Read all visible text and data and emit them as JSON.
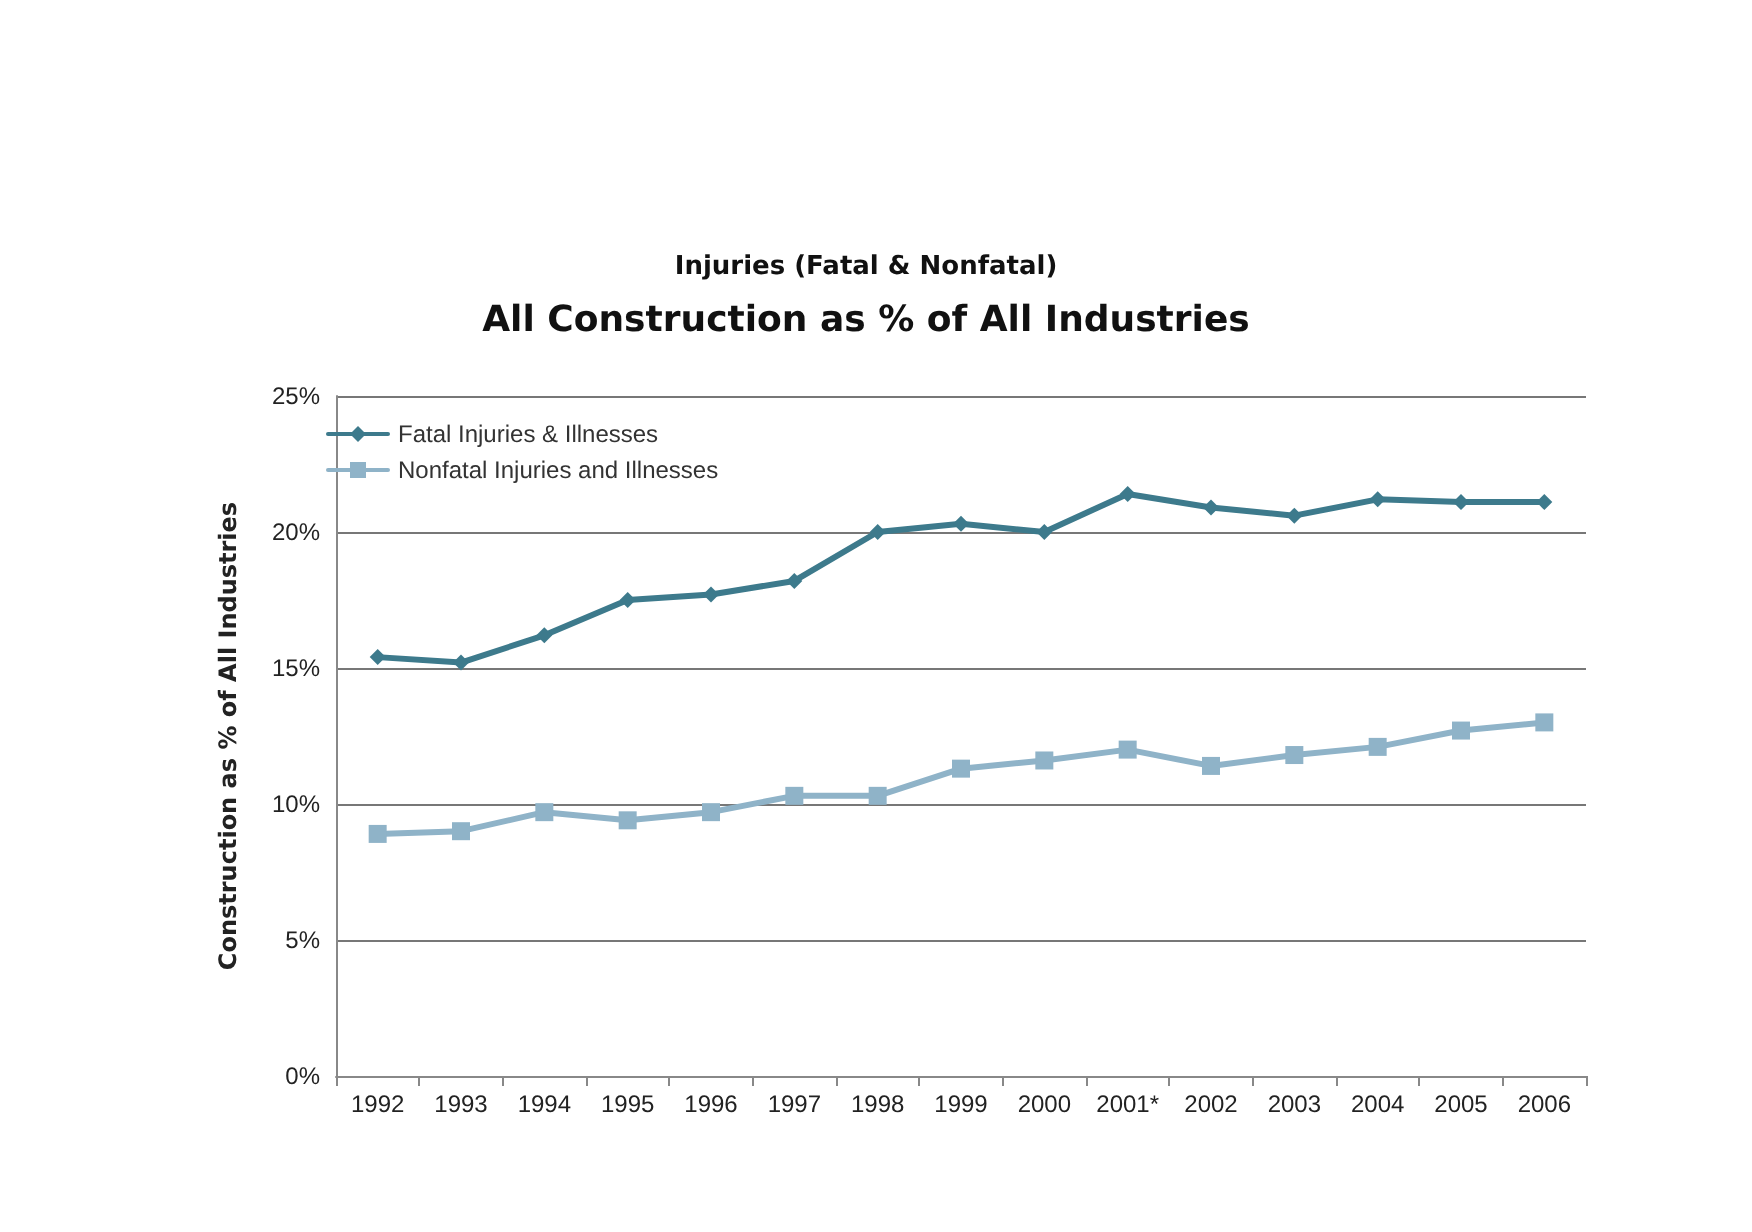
{
  "chart_data": {
    "type": "line",
    "title": "All Construction as % of All Industries",
    "subtitle": "Injuries (Fatal & Nonfatal)",
    "ylabel": "Construction as % of All Industries",
    "categories": [
      "1992",
      "1993",
      "1994",
      "1995",
      "1996",
      "1997",
      "1998",
      "1999",
      "2000",
      "2001*",
      "2002",
      "2003",
      "2004",
      "2005",
      "2006"
    ],
    "series": [
      {
        "name": "Fatal Injuries & Illnesses",
        "color": "#3d7a8c",
        "marker": "diamond",
        "values": [
          15.4,
          15.2,
          16.2,
          17.5,
          17.7,
          18.2,
          20.0,
          20.3,
          20.0,
          21.4,
          20.9,
          20.6,
          21.2,
          21.1,
          21.1
        ]
      },
      {
        "name": "Nonfatal Injuries and Illnesses",
        "color": "#8fb3c8",
        "marker": "square",
        "values": [
          8.9,
          9.0,
          9.7,
          9.4,
          9.7,
          10.3,
          10.3,
          11.3,
          11.6,
          12.0,
          11.4,
          11.8,
          12.1,
          12.7,
          13.0
        ]
      }
    ],
    "ylim": [
      0,
      25
    ],
    "yticks": [
      {
        "value": 0,
        "label": "0%"
      },
      {
        "value": 5,
        "label": "5%"
      },
      {
        "value": 10,
        "label": "10%"
      },
      {
        "value": 15,
        "label": "15%"
      },
      {
        "value": 20,
        "label": "20%"
      },
      {
        "value": 25,
        "label": "25%"
      }
    ],
    "grid": "y",
    "legend": "top left",
    "line_style": "solid"
  }
}
